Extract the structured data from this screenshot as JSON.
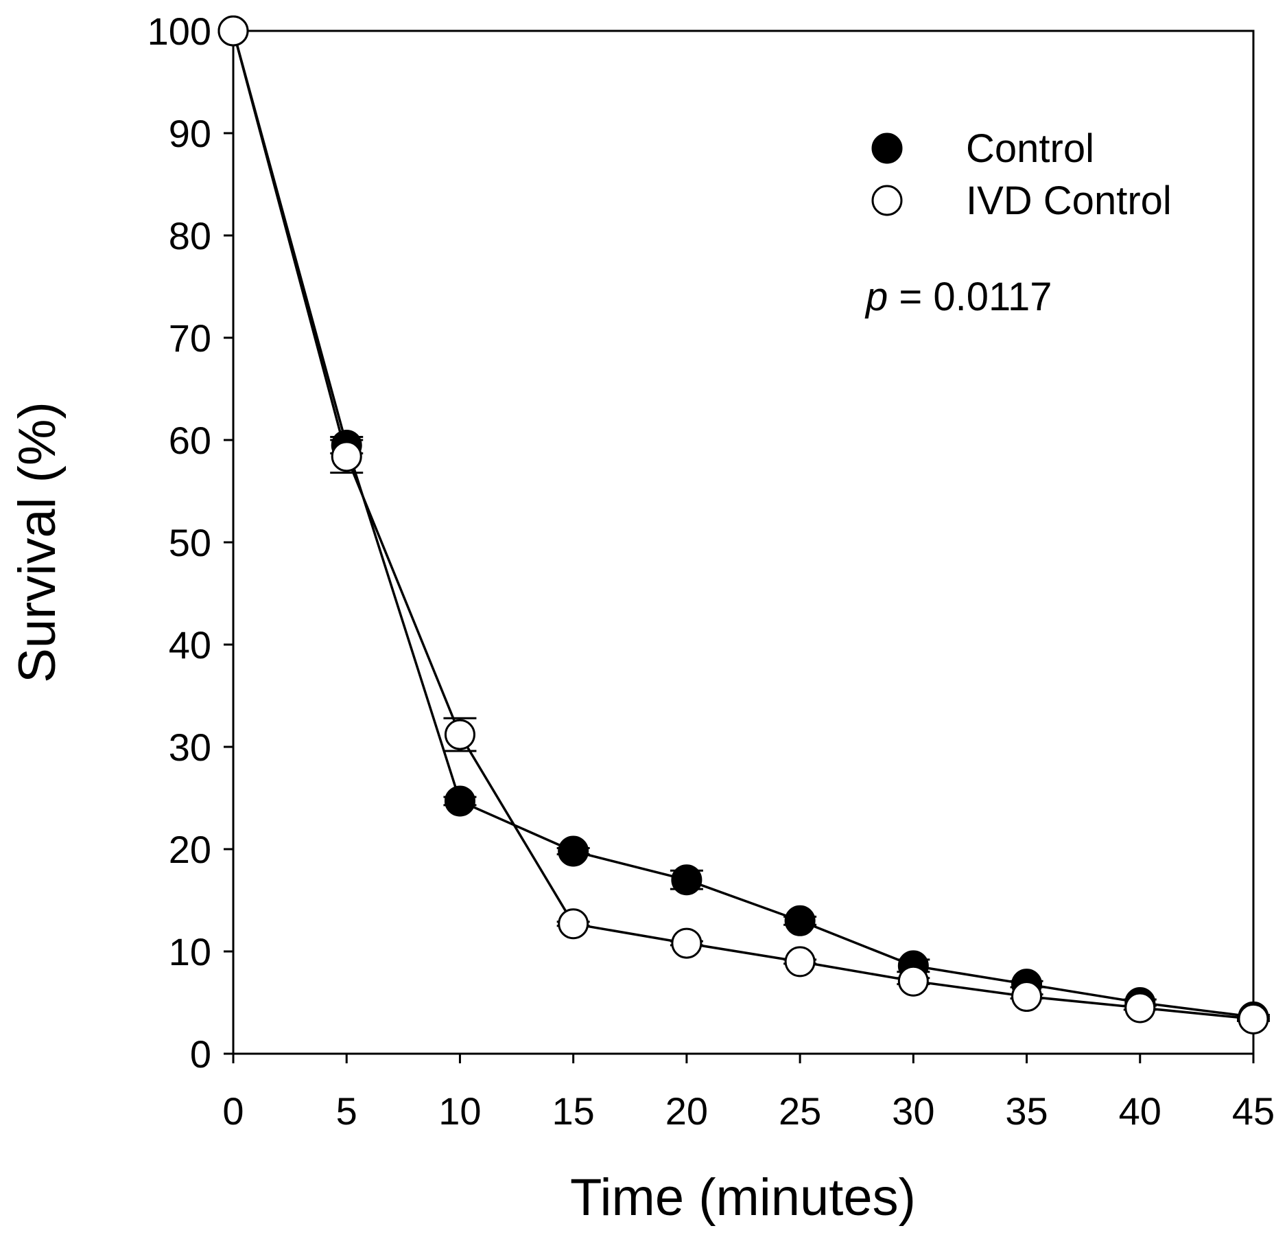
{
  "chart_data": {
    "type": "line",
    "title": "",
    "xlabel": "Time (minutes)",
    "ylabel": "Survival (%)",
    "xlim": [
      0,
      45
    ],
    "ylim": [
      0,
      100
    ],
    "x_ticks": [
      0,
      5,
      10,
      15,
      20,
      25,
      30,
      35,
      40,
      45
    ],
    "y_ticks": [
      0,
      10,
      20,
      30,
      40,
      50,
      60,
      70,
      80,
      90,
      100
    ],
    "x_tick_labels": [
      "0",
      "5",
      "10",
      "15",
      "20",
      "25",
      "30",
      "35",
      "40",
      "45"
    ],
    "y_tick_labels": [
      "0",
      "10",
      "20",
      "30",
      "40",
      "50",
      "60",
      "70",
      "80",
      "90",
      "100"
    ],
    "grid": false,
    "legend_position": "top-right",
    "x": [
      0,
      5,
      10,
      15,
      20,
      25,
      30,
      35,
      40,
      45
    ],
    "series": [
      {
        "name": "Control",
        "marker": "filled-circle",
        "color": "#000000",
        "values": [
          100,
          59.5,
          24.7,
          19.8,
          17.0,
          13.0,
          8.6,
          6.8,
          5.0,
          3.6
        ],
        "errors": [
          0,
          0.8,
          0.4,
          0.3,
          0.9,
          0.4,
          0.6,
          0.3,
          0.3,
          0.2
        ]
      },
      {
        "name": "IVD Control",
        "marker": "open-circle",
        "color": "#000000",
        "values": [
          100,
          58.4,
          31.2,
          12.7,
          10.8,
          9.0,
          7.1,
          5.6,
          4.5,
          3.4
        ],
        "errors": [
          0,
          1.6,
          1.6,
          0.2,
          0.2,
          0.2,
          0.3,
          0.2,
          0.2,
          0.2
        ]
      }
    ],
    "annotation": {
      "italic_part": "p",
      "rest": " = 0.0117"
    }
  }
}
